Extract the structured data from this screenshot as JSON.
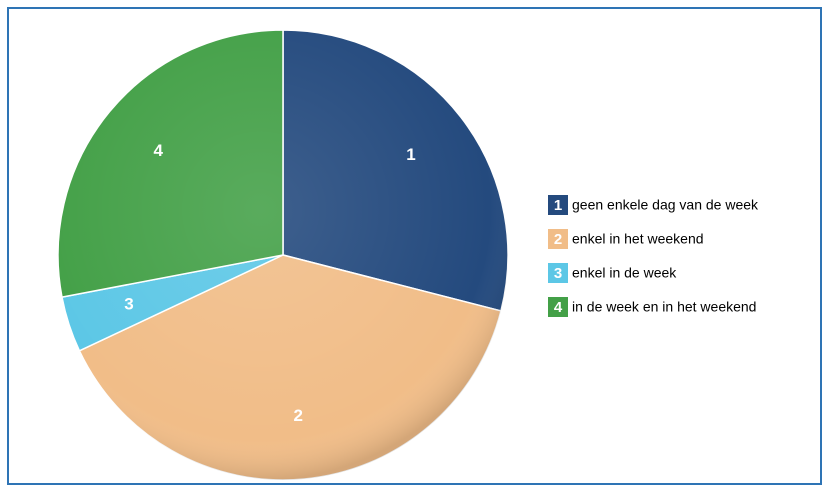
{
  "chart_data": {
    "type": "pie",
    "keys": [
      "1",
      "2",
      "3",
      "4"
    ],
    "categories": [
      "geen enkele dag van de week",
      "enkel in het weekend",
      "enkel in de week",
      "in de week en in het weekend"
    ],
    "values": [
      29,
      39,
      4,
      28
    ],
    "colors": [
      "#244a7e",
      "#f1bd88",
      "#5cc7e6",
      "#43a047"
    ]
  }
}
